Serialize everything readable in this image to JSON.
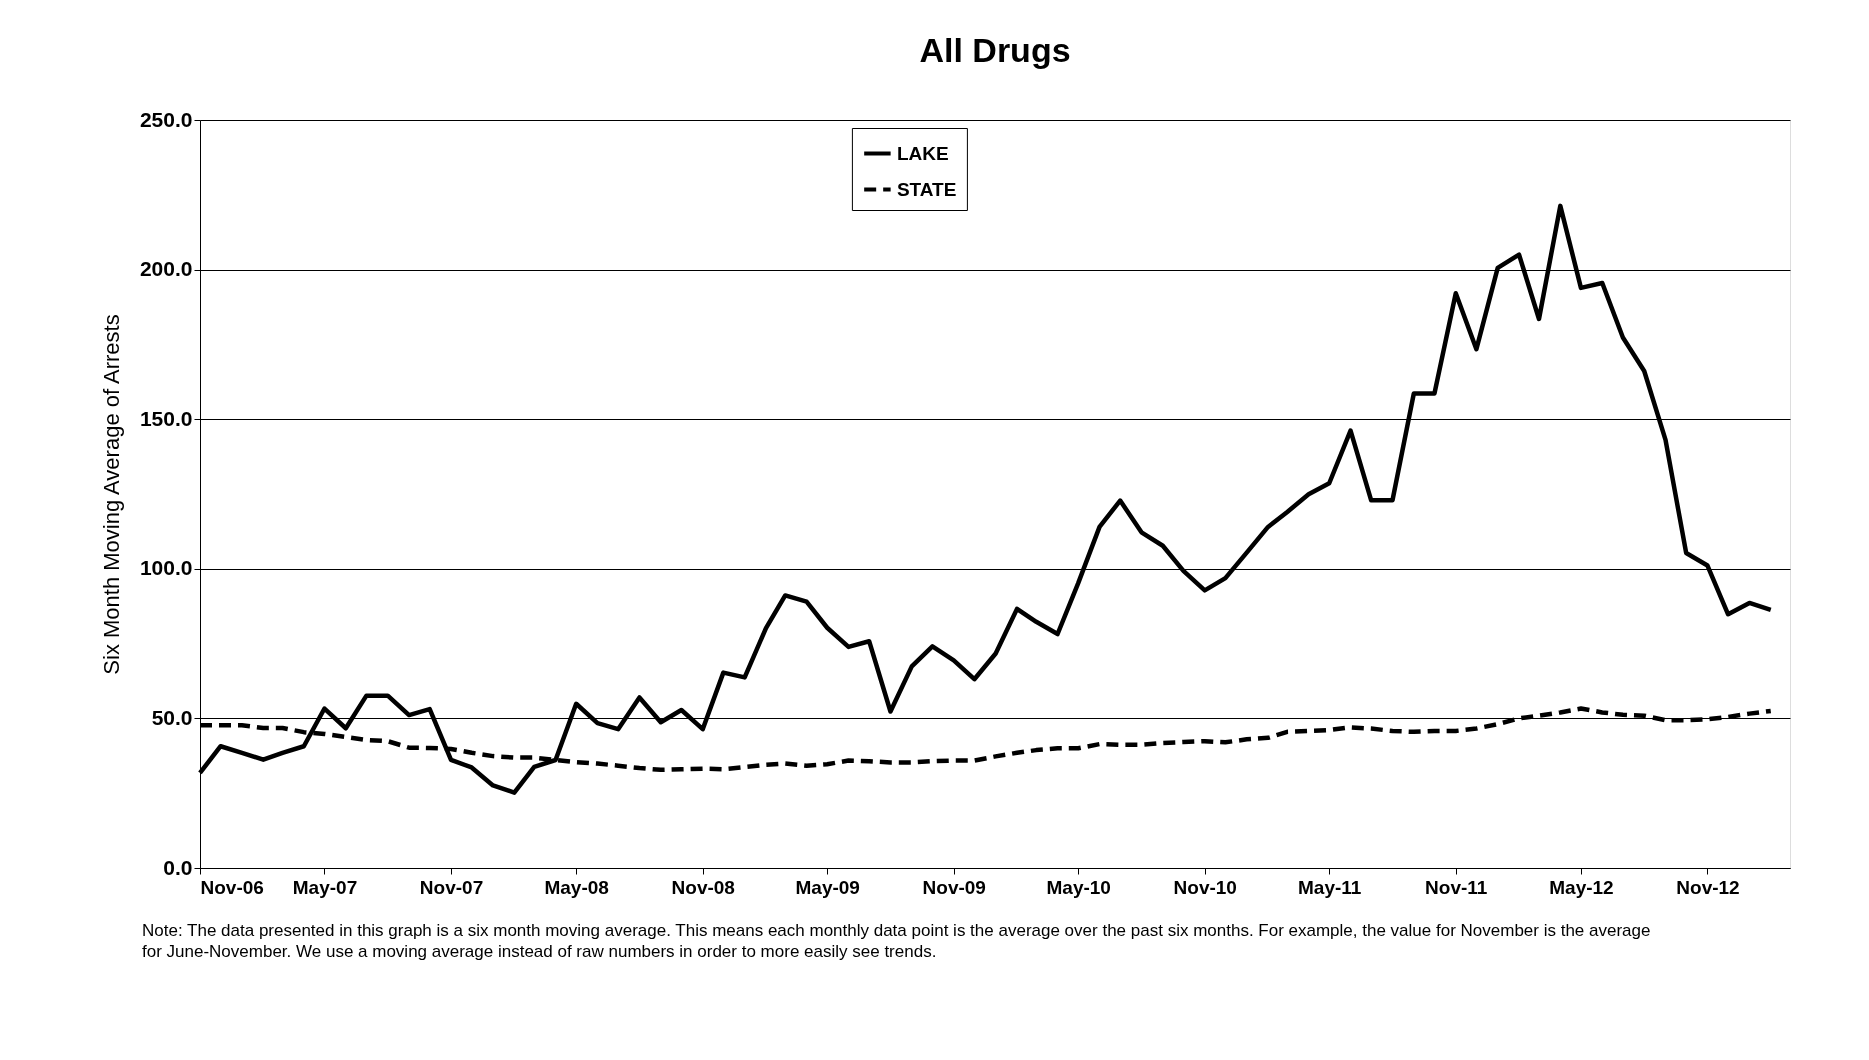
{
  "chart_data": {
    "type": "line",
    "title": "All Drugs",
    "ylabel": "Six Month Moving Average of Arrests",
    "annotations": [
      "Note: The data presented in this graph is a six month moving average. This means each monthly data point is the average over the past six months. For example, the value for November is the average for June-November.  We use a moving average instead of raw numbers in order to more easily see trends."
    ],
    "x": [
      "2006-11",
      "2006-12",
      "2007-01",
      "2007-02",
      "2007-03",
      "2007-04",
      "2007-05",
      "2007-06",
      "2007-07",
      "2007-08",
      "2007-09",
      "2007-10",
      "2007-11",
      "2007-12",
      "2008-01",
      "2008-02",
      "2008-03",
      "2008-04",
      "2008-05",
      "2008-06",
      "2008-07",
      "2008-08",
      "2008-09",
      "2008-10",
      "2008-11",
      "2008-12",
      "2009-01",
      "2009-02",
      "2009-03",
      "2009-04",
      "2009-05",
      "2009-06",
      "2009-07",
      "2009-08",
      "2009-09",
      "2009-10",
      "2009-11",
      "2009-12",
      "2010-01",
      "2010-02",
      "2010-03",
      "2010-04",
      "2010-05",
      "2010-06",
      "2010-07",
      "2010-08",
      "2010-09",
      "2010-10",
      "2010-11",
      "2010-12",
      "2011-01",
      "2011-02",
      "2011-03",
      "2011-04",
      "2011-05",
      "2011-06",
      "2011-07",
      "2011-08",
      "2011-09",
      "2011-10",
      "2011-11",
      "2011-12",
      "2012-01",
      "2012-02",
      "2012-03",
      "2012-04",
      "2012-05",
      "2012-06",
      "2012-07",
      "2012-08",
      "2012-09",
      "2012-10",
      "2012-11",
      "2012-12",
      "2013-01",
      "2013-02"
    ],
    "series": [
      {
        "name": "LAKE",
        "color": "#000000",
        "line_style": "solid",
        "values": [
          31.8,
          40.7,
          38.5,
          36.2,
          38.5,
          40.7,
          53.3,
          46.7,
          57.6,
          57.6,
          51.1,
          53.1,
          36.1,
          33.6,
          27.6,
          25.2,
          33.8,
          36.1,
          54.9,
          48.4,
          46.4,
          57.0,
          48.7,
          52.8,
          46.4,
          65.3,
          63.7,
          80.2,
          91.1,
          89.0,
          80.3,
          73.9,
          75.8,
          52.3,
          67.4,
          74.1,
          69.4,
          63.1,
          71.7,
          86.6,
          82.3,
          78.2,
          95.2,
          114.0,
          122.8,
          112.2,
          107.7,
          99.3,
          92.8,
          96.9,
          105.4,
          114.0,
          119.0,
          124.9,
          128.6,
          146.2,
          122.9,
          122.9,
          158.6,
          158.6,
          192.1,
          173.4,
          200.6,
          205.0,
          183.5,
          221.3,
          193.9,
          195.5,
          177.3,
          166.1,
          143.1,
          105.3,
          101.1,
          84.8,
          88.6,
          86.3
        ]
      },
      {
        "name": "STATE",
        "color": "#000000",
        "line_style": "dashed",
        "values": [
          47.7,
          47.7,
          47.7,
          46.8,
          46.8,
          45.4,
          44.8,
          43.8,
          42.8,
          42.4,
          40.2,
          40.1,
          39.8,
          38.5,
          37.4,
          36.9,
          36.9,
          36.1,
          35.4,
          34.9,
          34.2,
          33.4,
          32.8,
          33.0,
          33.2,
          33.0,
          33.7,
          34.5,
          34.9,
          34.2,
          34.7,
          35.9,
          35.7,
          35.3,
          35.3,
          35.7,
          35.9,
          35.9,
          37.3,
          38.5,
          39.4,
          40.0,
          40.0,
          41.4,
          41.2,
          41.2,
          41.8,
          42.1,
          42.4,
          42.0,
          43.0,
          43.5,
          45.5,
          45.8,
          46.1,
          47.0,
          46.6,
          45.8,
          45.5,
          45.8,
          45.8,
          46.6,
          48.1,
          50.0,
          50.9,
          52.0,
          53.3,
          52.0,
          51.2,
          50.9,
          49.4,
          49.4,
          49.7,
          50.5,
          51.6,
          52.5
        ]
      }
    ],
    "xlim": [
      "2006-11",
      "2013-03"
    ],
    "xticks": [
      {
        "value": "2006-11",
        "label": "Nov-06"
      },
      {
        "value": "2007-05",
        "label": "May-07"
      },
      {
        "value": "2007-11",
        "label": "Nov-07"
      },
      {
        "value": "2008-05",
        "label": "May-08"
      },
      {
        "value": "2008-11",
        "label": "Nov-08"
      },
      {
        "value": "2009-05",
        "label": "May-09"
      },
      {
        "value": "2009-11",
        "label": "Nov-09"
      },
      {
        "value": "2010-05",
        "label": "May-10"
      },
      {
        "value": "2010-11",
        "label": "Nov-10"
      },
      {
        "value": "2011-05",
        "label": "May-11"
      },
      {
        "value": "2011-11",
        "label": "Nov-11"
      },
      {
        "value": "2012-05",
        "label": "May-12"
      },
      {
        "value": "2012-11",
        "label": "Nov-12"
      }
    ],
    "ylim": [
      0,
      250
    ],
    "yticks": [
      {
        "value": 0,
        "label": "0.0"
      },
      {
        "value": 50,
        "label": "50.0"
      },
      {
        "value": 100,
        "label": "100.0"
      },
      {
        "value": 150,
        "label": "150.0"
      },
      {
        "value": 200,
        "label": "200.0"
      },
      {
        "value": 250,
        "label": "250.0"
      }
    ],
    "grid": "y",
    "legend": "top",
    "marker": "none"
  }
}
